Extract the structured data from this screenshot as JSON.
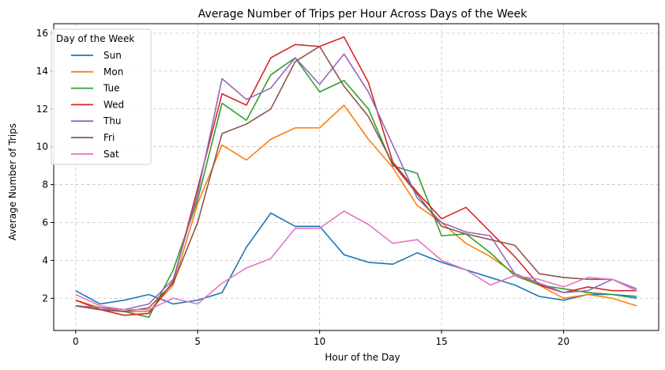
{
  "chart_data": {
    "type": "line",
    "title": "Average Number of Trips per Hour Across Days of the Week",
    "xlabel": "Hour of the Day",
    "ylabel": "Average Number of Trips",
    "xlim": [
      -0.9,
      23.9
    ],
    "ylim": [
      0.3,
      16.5
    ],
    "xticks": [
      0,
      5,
      10,
      15,
      20
    ],
    "yticks": [
      2,
      4,
      6,
      8,
      10,
      12,
      14,
      16
    ],
    "grid": true,
    "legend": {
      "title": "Day of the Week",
      "placement": "top-left"
    },
    "x": [
      0,
      1,
      2,
      3,
      4,
      5,
      6,
      7,
      8,
      9,
      10,
      11,
      12,
      13,
      14,
      15,
      16,
      17,
      18,
      19,
      20,
      21,
      22,
      23
    ],
    "series": [
      {
        "name": "Sun",
        "color": "#1f77b4",
        "values": [
          2.4,
          1.7,
          1.9,
          2.2,
          1.7,
          1.9,
          2.3,
          4.7,
          6.5,
          5.8,
          5.8,
          4.3,
          3.9,
          3.8,
          4.4,
          3.9,
          3.5,
          3.1,
          2.7,
          2.1,
          1.9,
          2.2,
          2.2,
          2.1
        ]
      },
      {
        "name": "Mon",
        "color": "#ff7f0e",
        "values": [
          1.9,
          1.5,
          1.3,
          1.3,
          2.7,
          7.0,
          10.1,
          9.3,
          10.4,
          11.0,
          11.0,
          12.2,
          10.4,
          8.9,
          6.9,
          6.0,
          4.9,
          4.2,
          3.3,
          2.7,
          2.0,
          2.2,
          2.0,
          1.6
        ]
      },
      {
        "name": "Tue",
        "color": "#2ca02c",
        "values": [
          1.6,
          1.4,
          1.3,
          1.0,
          3.5,
          7.2,
          12.3,
          11.4,
          13.8,
          14.7,
          12.9,
          13.5,
          12.0,
          9.0,
          8.6,
          5.3,
          5.4,
          4.4,
          3.2,
          2.7,
          2.5,
          2.3,
          2.2,
          2.0
        ]
      },
      {
        "name": "Wed",
        "color": "#d62728",
        "values": [
          1.9,
          1.4,
          1.1,
          1.2,
          2.9,
          7.8,
          12.8,
          12.2,
          14.7,
          15.4,
          15.3,
          15.8,
          13.4,
          9.2,
          7.6,
          6.2,
          6.8,
          5.5,
          4.2,
          2.7,
          2.3,
          2.6,
          2.4,
          2.4
        ]
      },
      {
        "name": "Thu",
        "color": "#9467bd",
        "values": [
          1.6,
          1.5,
          1.4,
          1.7,
          3.0,
          7.5,
          13.6,
          12.5,
          13.1,
          14.7,
          13.3,
          14.9,
          12.9,
          10.1,
          7.3,
          6.0,
          5.5,
          5.3,
          3.3,
          2.8,
          2.3,
          2.4,
          3.0,
          2.5
        ]
      },
      {
        "name": "Fri",
        "color": "#8c564b",
        "values": [
          1.6,
          1.4,
          1.3,
          1.5,
          2.8,
          6.0,
          10.7,
          11.2,
          12.0,
          14.5,
          15.3,
          13.2,
          11.6,
          9.1,
          7.5,
          5.8,
          5.4,
          5.1,
          4.8,
          3.3,
          3.1,
          3.0,
          3.0,
          2.4
        ]
      },
      {
        "name": "Sat",
        "color": "#e377c2",
        "values": [
          2.2,
          1.6,
          1.4,
          1.4,
          2.0,
          1.7,
          2.8,
          3.6,
          4.1,
          5.7,
          5.7,
          6.6,
          5.9,
          4.9,
          5.1,
          4.0,
          3.5,
          2.7,
          3.2,
          3.0,
          2.6,
          3.1,
          3.0,
          2.4
        ]
      }
    ]
  }
}
